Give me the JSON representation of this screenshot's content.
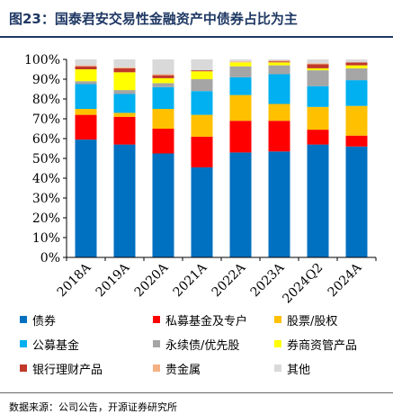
{
  "figure": {
    "title": "图23：国泰君安交易性金融资产中债券占比为主",
    "source": "数据来源：公司公告，开源证券研究所"
  },
  "colors": {
    "title": "#1f3864",
    "axis": "#000000"
  },
  "chart_data": {
    "type": "bar",
    "stacked": true,
    "categories": [
      "2018A",
      "2019A",
      "2020A",
      "2021A",
      "2022A",
      "2023A",
      "2024Q2",
      "2024A"
    ],
    "y_tick_labels": [
      "0%",
      "10%",
      "20%",
      "30%",
      "40%",
      "50%",
      "60%",
      "70%",
      "80%",
      "90%",
      "100%"
    ],
    "ylim": [
      0,
      100
    ],
    "y_unit": "%",
    "grid": false,
    "legend_position": "bottom",
    "series": [
      {
        "name": "债券",
        "color": "#0070c0",
        "values": [
          59.5,
          57,
          52.5,
          45.5,
          53,
          53.5,
          57,
          56
        ]
      },
      {
        "name": "私募基金及专户",
        "color": "#ff0000",
        "values": [
          12.5,
          14,
          12.5,
          15.5,
          16,
          15.5,
          7.5,
          5.5
        ]
      },
      {
        "name": "股票/股权",
        "color": "#ffc000",
        "values": [
          3,
          2,
          10,
          11,
          13,
          8.5,
          11.5,
          15
        ]
      },
      {
        "name": "公募基金",
        "color": "#00b0f0",
        "values": [
          12.5,
          9.5,
          11,
          12,
          9,
          15,
          10.5,
          13
        ]
      },
      {
        "name": "永续债/优先股",
        "color": "#a5a5a5",
        "values": [
          1.5,
          2,
          2,
          6,
          5.5,
          4.5,
          8,
          6
        ]
      },
      {
        "name": "券商资管产品",
        "color": "#ffff00",
        "values": [
          6,
          9,
          2.5,
          4,
          2,
          1.5,
          1,
          1.5
        ]
      },
      {
        "name": "银行理财产品",
        "color": "#c0392b",
        "values": [
          1.5,
          2,
          1.5,
          0.5,
          0,
          0.5,
          2,
          1.5
        ]
      },
      {
        "name": "贵金属",
        "color": "#f4b183",
        "values": [
          0.5,
          0.5,
          0.5,
          0,
          0.5,
          0.5,
          0.5,
          0
        ]
      },
      {
        "name": "其他",
        "color": "#d9d9d9",
        "values": [
          3,
          4,
          7.5,
          5.5,
          1,
          0.5,
          2,
          1.5
        ]
      }
    ]
  }
}
